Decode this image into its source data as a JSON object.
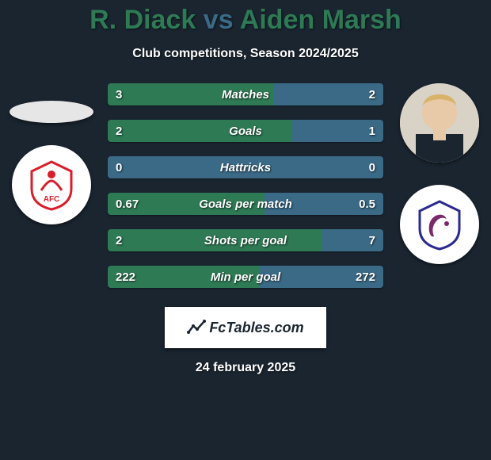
{
  "title": {
    "player1": "R. Diack",
    "vs": "vs",
    "player2": "Aiden Marsh",
    "player1_color": "#2e7a55",
    "vs_color": "#3a6a86",
    "player2_color": "#2e7a55"
  },
  "subtitle": "Club competitions, Season 2024/2025",
  "colors": {
    "bg": "#1a2530",
    "green": "#2e7a55",
    "blue": "#3a6a86",
    "neutral_text": "#d0d3d8"
  },
  "avatars": {
    "player1_shape": "ellipse",
    "player2_shape": "circle",
    "club1_bg": "#ffffff",
    "club2_bg": "#ffffff"
  },
  "club_icons": {
    "left": {
      "primary": "#d81e2a",
      "secondary": "#ffffff",
      "label": "AFC"
    },
    "right": {
      "primary": "#2b2a8f",
      "secondary": "#ffffff"
    }
  },
  "bars": [
    {
      "label": "Matches",
      "left": "3",
      "right": "2",
      "left_pct": 60,
      "right_pct": 40,
      "left_color": "#2e7a55",
      "right_color": "#3a6a86"
    },
    {
      "label": "Goals",
      "left": "2",
      "right": "1",
      "left_pct": 67,
      "right_pct": 33,
      "left_color": "#2e7a55",
      "right_color": "#3a6a86"
    },
    {
      "label": "Hattricks",
      "left": "0",
      "right": "0",
      "left_pct": 0,
      "right_pct": 0,
      "left_color": "#2e7a55",
      "right_color": "#3a6a86",
      "neutral": true
    },
    {
      "label": "Goals per match",
      "left": "0.67",
      "right": "0.5",
      "left_pct": 57,
      "right_pct": 43,
      "left_color": "#2e7a55",
      "right_color": "#3a6a86"
    },
    {
      "label": "Shots per goal",
      "left": "2",
      "right": "7",
      "left_pct": 78,
      "right_pct": 22,
      "left_color": "#2e7a55",
      "right_color": "#3a6a86",
      "lower_better": true
    },
    {
      "label": "Min per goal",
      "left": "222",
      "right": "272",
      "left_pct": 55,
      "right_pct": 45,
      "left_color": "#2e7a55",
      "right_color": "#3a6a86",
      "lower_better": true
    }
  ],
  "footer": {
    "logo_text": "FcTables.com",
    "date": "24 february 2025"
  }
}
